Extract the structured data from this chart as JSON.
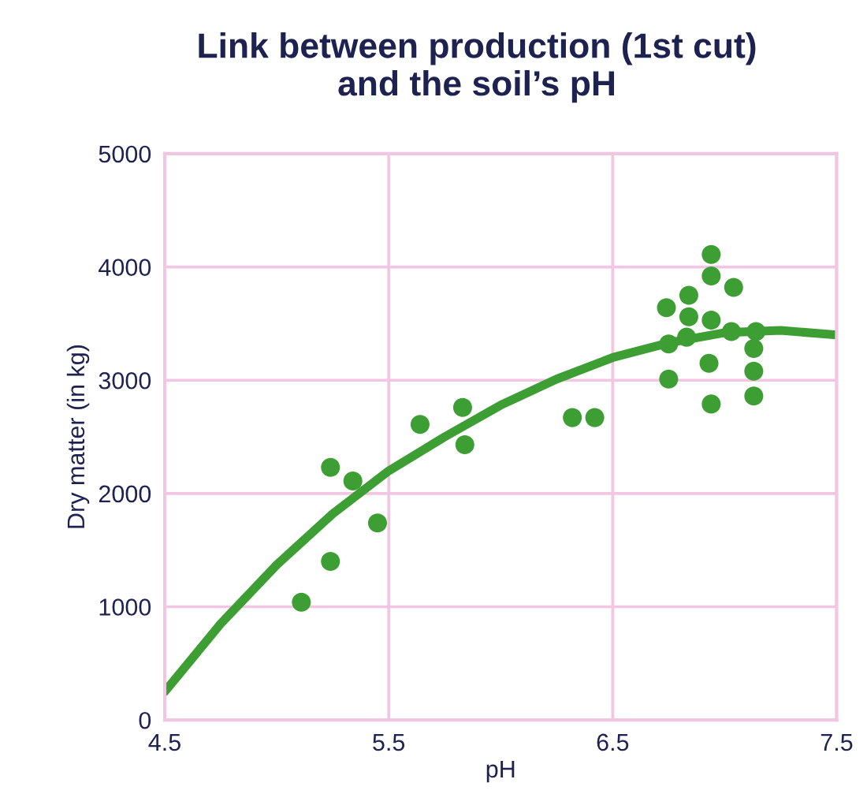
{
  "chart_data": {
    "type": "scatter",
    "title": "Link between production (1st cut)\nand the soil’s pH",
    "xlabel": "pH",
    "ylabel": "Dry matter (in kg)",
    "xlim": [
      4.5,
      7.5
    ],
    "xticks": [
      4.5,
      5.5,
      6.5,
      7.5
    ],
    "ylim": [
      0,
      5000
    ],
    "yticks": [
      0,
      1000,
      2000,
      3000,
      4000,
      5000
    ],
    "grid": true,
    "series": [
      {
        "marker": "circle",
        "color": "#3d9e34",
        "x": [
          5.11,
          5.24,
          5.24,
          5.34,
          5.45,
          5.64,
          5.83,
          5.84,
          6.32,
          6.42,
          6.74,
          6.75,
          6.75,
          6.84,
          6.84,
          6.83,
          6.94,
          6.94,
          6.94,
          6.93,
          6.94,
          7.04,
          7.03,
          7.14,
          7.13,
          7.13,
          7.13
        ],
        "values": [
          1040,
          2230,
          1400,
          2110,
          1740,
          2610,
          2760,
          2430,
          2670,
          2670,
          3640,
          3320,
          3010,
          3750,
          3560,
          3380,
          4110,
          3920,
          3530,
          3150,
          2790,
          3820,
          3430,
          3430,
          3280,
          3080,
          2860
        ]
      },
      {
        "type": "line",
        "color": "#3d9e34",
        "x": [
          4.5,
          4.75,
          5.0,
          5.25,
          5.5,
          5.75,
          6.0,
          6.25,
          6.5,
          6.75,
          7.0,
          7.25,
          7.5
        ],
        "values": [
          250,
          850,
          1370,
          1820,
          2200,
          2500,
          2780,
          3010,
          3200,
          3330,
          3420,
          3440,
          3400
        ]
      }
    ]
  }
}
